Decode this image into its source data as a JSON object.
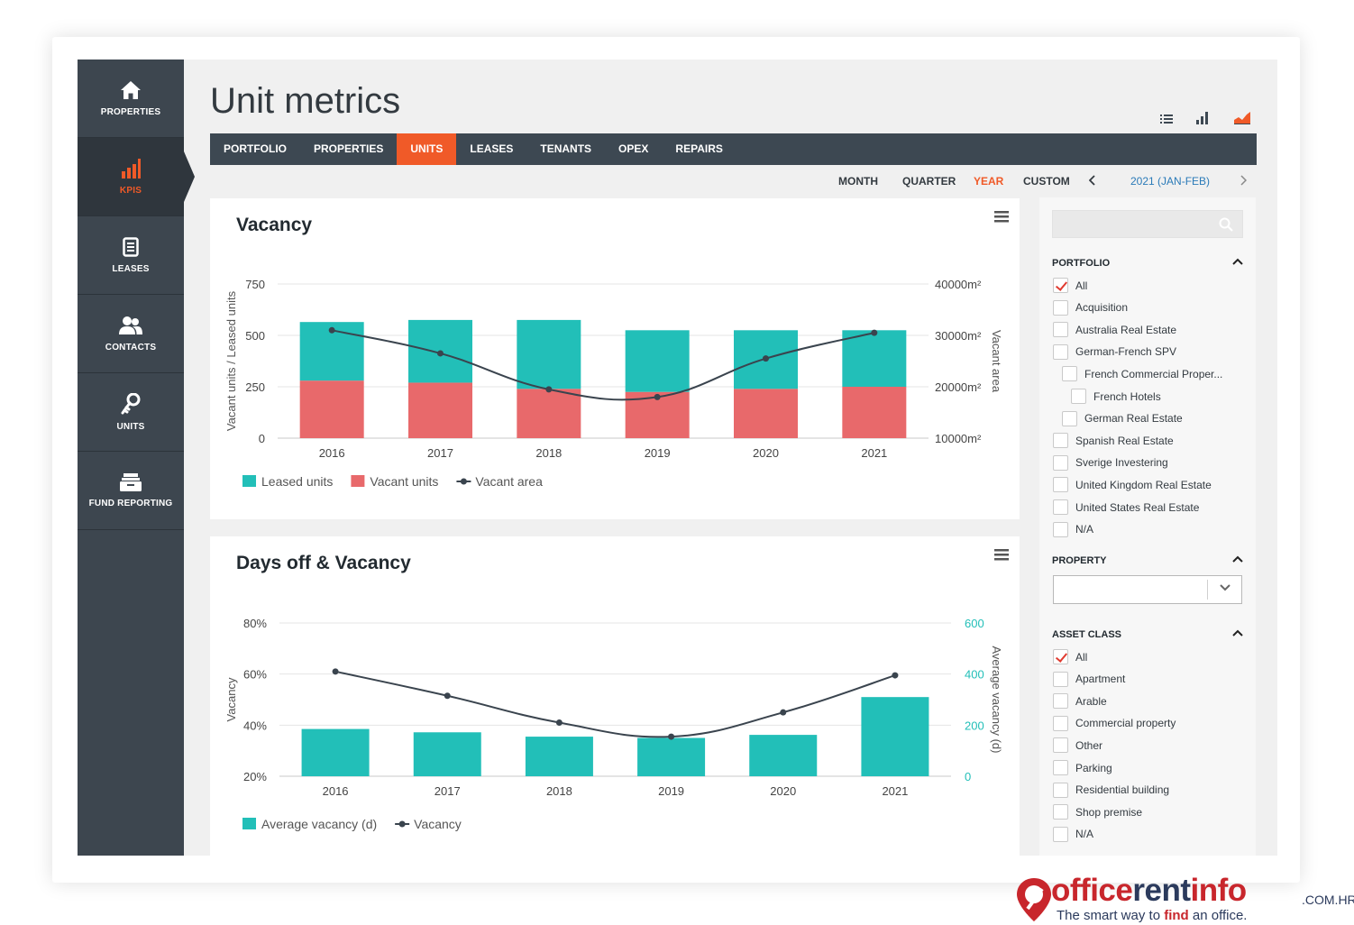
{
  "sidebar": {
    "items": [
      {
        "label": "PROPERTIES",
        "icon": "home-icon"
      },
      {
        "label": "KPIS",
        "icon": "bar-chart-icon"
      },
      {
        "label": "LEASES",
        "icon": "document-icon"
      },
      {
        "label": "CONTACTS",
        "icon": "people-icon"
      },
      {
        "label": "UNITS",
        "icon": "key-icon"
      },
      {
        "label": "FUND REPORTING",
        "icon": "box-icon"
      }
    ]
  },
  "page": {
    "title": "Unit metrics"
  },
  "view_icons": [
    "list-view-icon",
    "bar-chart-view-icon",
    "area-chart-view-icon"
  ],
  "tabs": [
    "PORTFOLIO",
    "PROPERTIES",
    "UNITS",
    "LEASES",
    "TENANTS",
    "OPEX",
    "REPAIRS"
  ],
  "active_tab": "UNITS",
  "periods": {
    "options": [
      "MONTH",
      "QUARTER",
      "YEAR",
      "CUSTOM"
    ],
    "selected": "YEAR",
    "range": "2021 (JAN-FEB)"
  },
  "colors": {
    "accent": "#f05a28",
    "teal": "#22bfb8",
    "red": "#e8696b",
    "line": "#3a444e",
    "sidebar": "#3d464f"
  },
  "vacancy_panel": {
    "title": "Vacancy"
  },
  "days_panel": {
    "title": "Days off & Vacancy"
  },
  "chart_data": [
    {
      "type": "bar",
      "title": "Vacancy",
      "categories": [
        "2016",
        "2017",
        "2018",
        "2019",
        "2020",
        "2021"
      ],
      "ylabel": "Vacant units / Leased units",
      "ylabel_right": "Vacant area",
      "yticks": [
        "0",
        "250",
        "500",
        "750"
      ],
      "yticks_right": [
        "10000m²",
        "20000m²",
        "30000m²",
        "40000m²"
      ],
      "ylim": [
        0,
        750
      ],
      "ylim_right": [
        10000,
        40000
      ],
      "stacked": true,
      "series": [
        {
          "name": "Vacant units",
          "type": "bar",
          "values": [
            280,
            270,
            240,
            225,
            240,
            250
          ]
        },
        {
          "name": "Leased units",
          "type": "bar",
          "values": [
            285,
            305,
            335,
            300,
            285,
            275
          ]
        },
        {
          "name": "Vacant area",
          "type": "line",
          "axis": "right",
          "values": [
            31000,
            26500,
            19500,
            18000,
            25500,
            30500
          ]
        }
      ],
      "legend": [
        "Leased units",
        "Vacant units",
        "Vacant area"
      ],
      "legend_position": "bottom-left",
      "grid": true
    },
    {
      "type": "bar",
      "title": "Days off & Vacancy",
      "categories": [
        "2016",
        "2017",
        "2018",
        "2019",
        "2020",
        "2021"
      ],
      "ylabel": "Vacancy",
      "ylabel_right": "Average vacancy (d)",
      "yticks": [
        "20%",
        "40%",
        "60%",
        "80%"
      ],
      "yticks_right": [
        "0",
        "200",
        "400",
        "600"
      ],
      "ylim": [
        20,
        80
      ],
      "ylim_right": [
        0,
        600
      ],
      "series": [
        {
          "name": "Average vacancy (d)",
          "type": "bar",
          "axis": "right",
          "values": [
            185,
            172,
            155,
            150,
            162,
            310
          ]
        },
        {
          "name": "Vacancy",
          "type": "line",
          "values": [
            61,
            51.5,
            41,
            35.5,
            45,
            59.5
          ]
        }
      ],
      "legend": [
        "Average vacancy (d)",
        "Vacancy"
      ],
      "legend_position": "bottom-left",
      "grid": true
    }
  ],
  "filters": {
    "search_placeholder": "",
    "portfolio": {
      "title": "PORTFOLIO",
      "items": [
        {
          "label": "All",
          "checked": true,
          "level": 0
        },
        {
          "label": "Acquisition",
          "checked": false,
          "level": 0
        },
        {
          "label": "Australia Real Estate",
          "checked": false,
          "level": 0
        },
        {
          "label": "German-French SPV",
          "checked": false,
          "level": 0
        },
        {
          "label": "French Commercial Proper...",
          "checked": false,
          "level": 1
        },
        {
          "label": "French Hotels",
          "checked": false,
          "level": 2
        },
        {
          "label": "German Real Estate",
          "checked": false,
          "level": 1
        },
        {
          "label": "Spanish Real Estate",
          "checked": false,
          "level": 0
        },
        {
          "label": "Sverige Investering",
          "checked": false,
          "level": 0
        },
        {
          "label": "United Kingdom Real Estate",
          "checked": false,
          "level": 0
        },
        {
          "label": "United States Real Estate",
          "checked": false,
          "level": 0
        },
        {
          "label": "N/A",
          "checked": false,
          "level": 0
        }
      ]
    },
    "property": {
      "title": "PROPERTY",
      "value": ""
    },
    "asset_class": {
      "title": "ASSET CLASS",
      "items": [
        {
          "label": "All",
          "checked": true
        },
        {
          "label": "Apartment",
          "checked": false
        },
        {
          "label": "Arable",
          "checked": false
        },
        {
          "label": "Commercial property",
          "checked": false
        },
        {
          "label": "Other",
          "checked": false
        },
        {
          "label": "Parking",
          "checked": false
        },
        {
          "label": "Residential building",
          "checked": false
        },
        {
          "label": "Shop premise",
          "checked": false
        },
        {
          "label": "N/A",
          "checked": false
        }
      ]
    }
  },
  "brand": {
    "name_part1": "office",
    "name_part2": "rent",
    "name_part3": "info",
    "tld": ".COM.HR",
    "tagline_pre": "The smart way to ",
    "tagline_bold": "find",
    "tagline_post": " an office."
  }
}
